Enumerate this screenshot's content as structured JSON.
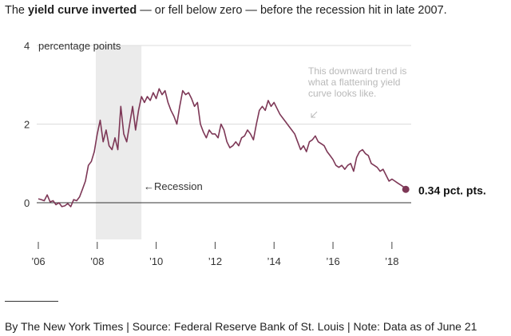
{
  "headline": {
    "prefix": "The ",
    "bold": "yield curve inverted",
    "suffix": " — or fell below zero — before the recession hit in late 2007."
  },
  "footer": "By The New York Times | Source: Federal Reserve Bank of St. Louis | Note: Data as of June 21",
  "colors": {
    "series": "#7d3756",
    "recession": "#ebebeb",
    "grid": "#dcdcdc",
    "zero_line": "#333333",
    "annotation": "#b9b9b9"
  },
  "chart_data": {
    "type": "line",
    "title": "",
    "xlabel": "",
    "ylabel": "percentage points",
    "xlim": [
      2006.0,
      2018.6
    ],
    "ylim": [
      -1,
      4
    ],
    "grid": true,
    "y_ticks": [
      {
        "value": 0,
        "label": "0"
      },
      {
        "value": 2,
        "label": "2"
      },
      {
        "value": 4,
        "label": "4"
      }
    ],
    "x_ticks": [
      {
        "value": 2006,
        "label": "’06"
      },
      {
        "value": 2008,
        "label": "’08"
      },
      {
        "value": 2010,
        "label": "’10"
      },
      {
        "value": 2012,
        "label": "’12"
      },
      {
        "value": 2014,
        "label": "’14"
      },
      {
        "value": 2016,
        "label": "’16"
      },
      {
        "value": 2018,
        "label": "’18"
      }
    ],
    "recession": {
      "start": 2007.95,
      "end": 2009.5,
      "label": "←Recession"
    },
    "annotation": [
      "This downward trend is",
      "what a flattening yield",
      "curve looks like."
    ],
    "end_label": "0.34 pct. pts.",
    "series": [
      {
        "x": [
          2006.0,
          2006.1,
          2006.2,
          2006.3,
          2006.4,
          2006.5,
          2006.6,
          2006.7,
          2006.8,
          2006.9,
          2007.0,
          2007.1,
          2007.2,
          2007.3,
          2007.4,
          2007.5,
          2007.6,
          2007.7,
          2007.8,
          2007.9,
          2008.0,
          2008.1,
          2008.2,
          2008.3,
          2008.4,
          2008.5,
          2008.6,
          2008.7,
          2008.8,
          2008.9,
          2009.0,
          2009.1,
          2009.2,
          2009.3,
          2009.4,
          2009.5,
          2009.6,
          2009.7,
          2009.8,
          2009.9,
          2010.0,
          2010.1,
          2010.2,
          2010.3,
          2010.4,
          2010.5,
          2010.6,
          2010.7,
          2010.8,
          2010.9,
          2011.0,
          2011.1,
          2011.2,
          2011.3,
          2011.4,
          2011.5,
          2011.6,
          2011.7,
          2011.8,
          2011.9,
          2012.0,
          2012.1,
          2012.2,
          2012.3,
          2012.4,
          2012.5,
          2012.6,
          2012.7,
          2012.8,
          2012.9,
          2013.0,
          2013.1,
          2013.2,
          2013.3,
          2013.4,
          2013.5,
          2013.6,
          2013.7,
          2013.8,
          2013.9,
          2014.0,
          2014.1,
          2014.2,
          2014.3,
          2014.4,
          2014.5,
          2014.6,
          2014.7,
          2014.8,
          2014.9,
          2015.0,
          2015.1,
          2015.2,
          2015.3,
          2015.4,
          2015.5,
          2015.6,
          2015.7,
          2015.8,
          2015.9,
          2016.0,
          2016.1,
          2016.2,
          2016.3,
          2016.4,
          2016.5,
          2016.6,
          2016.7,
          2016.8,
          2016.9,
          2017.0,
          2017.1,
          2017.2,
          2017.3,
          2017.4,
          2017.5,
          2017.6,
          2017.7,
          2017.8,
          2017.9,
          2018.0,
          2018.1,
          2018.2,
          2018.3,
          2018.4,
          2018.47
        ],
        "values": [
          0.1,
          0.08,
          0.05,
          0.2,
          0.02,
          0.05,
          -0.05,
          0.0,
          -0.1,
          -0.08,
          -0.02,
          -0.1,
          0.08,
          0.05,
          0.15,
          0.35,
          0.55,
          0.95,
          1.05,
          1.3,
          1.75,
          2.1,
          1.55,
          1.85,
          1.45,
          1.35,
          1.65,
          1.35,
          2.45,
          1.75,
          1.55,
          2.0,
          2.45,
          1.85,
          2.35,
          2.7,
          2.55,
          2.7,
          2.6,
          2.8,
          2.65,
          2.9,
          2.75,
          2.85,
          2.55,
          2.35,
          2.2,
          2.0,
          2.45,
          2.85,
          2.75,
          2.8,
          2.65,
          2.45,
          2.55,
          2.0,
          1.8,
          1.65,
          1.85,
          1.75,
          1.75,
          1.65,
          2.0,
          1.85,
          1.55,
          1.4,
          1.45,
          1.55,
          1.45,
          1.65,
          1.7,
          1.85,
          1.75,
          1.6,
          2.0,
          2.35,
          2.45,
          2.35,
          2.6,
          2.45,
          2.55,
          2.4,
          2.25,
          2.15,
          2.05,
          1.95,
          1.85,
          1.75,
          1.55,
          1.35,
          1.45,
          1.3,
          1.55,
          1.6,
          1.7,
          1.55,
          1.5,
          1.45,
          1.3,
          1.2,
          1.1,
          0.95,
          0.9,
          0.95,
          0.85,
          0.95,
          1.0,
          0.8,
          1.15,
          1.3,
          1.35,
          1.25,
          1.2,
          1.0,
          0.95,
          0.9,
          0.8,
          0.85,
          0.7,
          0.55,
          0.6,
          0.55,
          0.5,
          0.45,
          0.4,
          0.34
        ]
      }
    ]
  }
}
